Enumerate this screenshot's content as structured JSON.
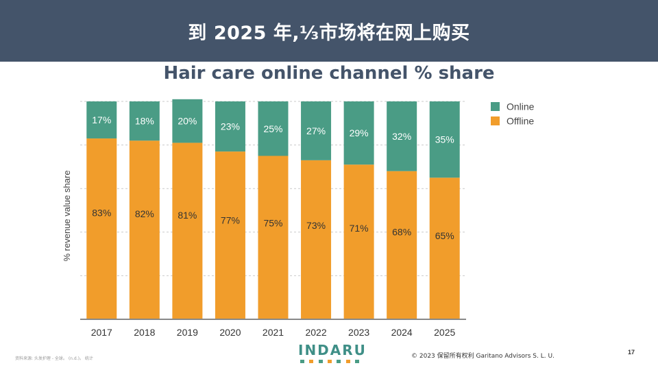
{
  "header": {
    "title": "到 2025 年,⅓市场将在网上购买"
  },
  "chart_data": {
    "type": "bar",
    "stacked": true,
    "title": "Hair care online channel % share",
    "xlabel": "",
    "ylabel": "% revenue value share",
    "ylim": [
      0,
      100
    ],
    "grid": true,
    "legend_position": "top-right",
    "categories": [
      "2017",
      "2018",
      "2019",
      "2020",
      "2021",
      "2022",
      "2023",
      "2024",
      "2025"
    ],
    "series": [
      {
        "name": "Offline",
        "color": "#f19d2b",
        "values": [
          83,
          82,
          81,
          77,
          75,
          73,
          71,
          68,
          65
        ],
        "labels": [
          "83%",
          "82%",
          "81%",
          "77%",
          "75%",
          "73%",
          "71%",
          "68%",
          "65%"
        ]
      },
      {
        "name": "Online",
        "color": "#4a9c85",
        "values": [
          17,
          18,
          20,
          23,
          25,
          27,
          29,
          32,
          35
        ],
        "labels": [
          "17%",
          "18%",
          "20%",
          "23%",
          "25%",
          "27%",
          "29%",
          "32%",
          "35%"
        ]
      }
    ]
  },
  "footer": {
    "source": "资料来源: 头发护理 - 全球。 (n.d.)。 统计",
    "logo_text": "INDARU",
    "logo_colors": [
      "#4a9c85",
      "#f19d2b",
      "#4a9c85",
      "#f19d2b",
      "#4a9c85",
      "#f19d2b",
      "#4a9c85"
    ],
    "copyright": "© 2023 保留所有权利 Garitano Advisors S. L. U.",
    "page_number": "17"
  }
}
